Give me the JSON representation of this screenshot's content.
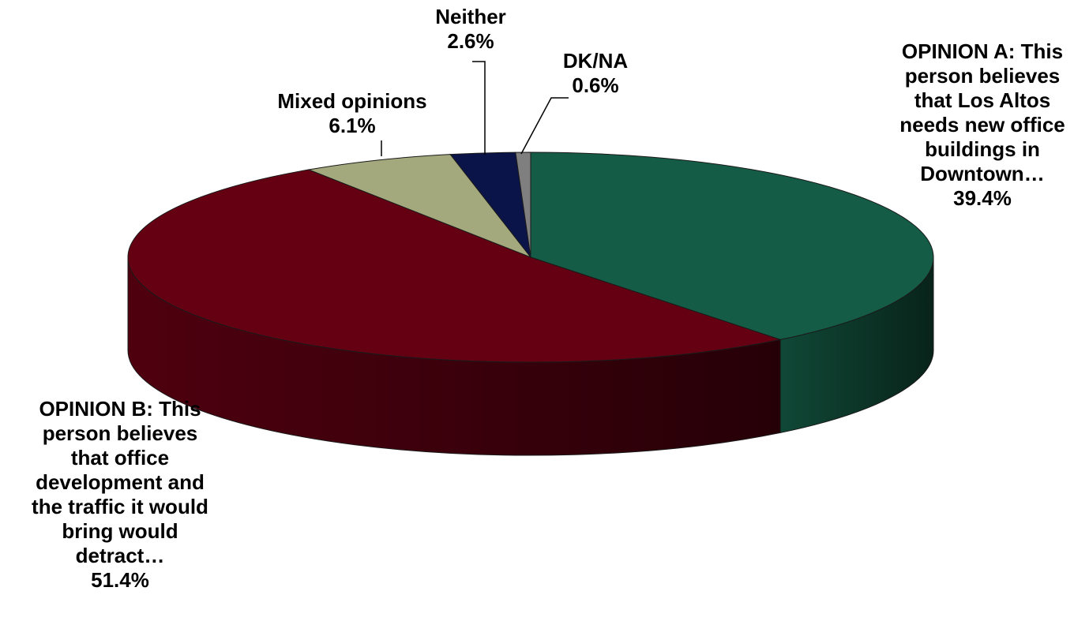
{
  "chart_data": {
    "type": "pie",
    "title": "",
    "slices": [
      {
        "label_lines": [
          "OPINION A: This",
          "person believes",
          "that Los Altos",
          "needs new office",
          "buildings in",
          "Downtown…"
        ],
        "value": 39.4,
        "value_label": "39.4%",
        "color": "#145c45"
      },
      {
        "label_lines": [
          "OPINION B: This",
          "person believes",
          "that office",
          "development and",
          "the traffic it would",
          "bring would",
          "detract…"
        ],
        "value": 51.4,
        "value_label": "51.4%",
        "color": "#650013"
      },
      {
        "label_lines": [
          "Mixed opinions"
        ],
        "value": 6.1,
        "value_label": "6.1%",
        "color": "#a3a97c"
      },
      {
        "label_lines": [
          "Neither"
        ],
        "value": 2.6,
        "value_label": "2.6%",
        "color": "#0b1449"
      },
      {
        "label_lines": [
          "DK/NA"
        ],
        "value": 0.6,
        "value_label": "0.6%",
        "color": "#7f7f7f"
      }
    ]
  }
}
